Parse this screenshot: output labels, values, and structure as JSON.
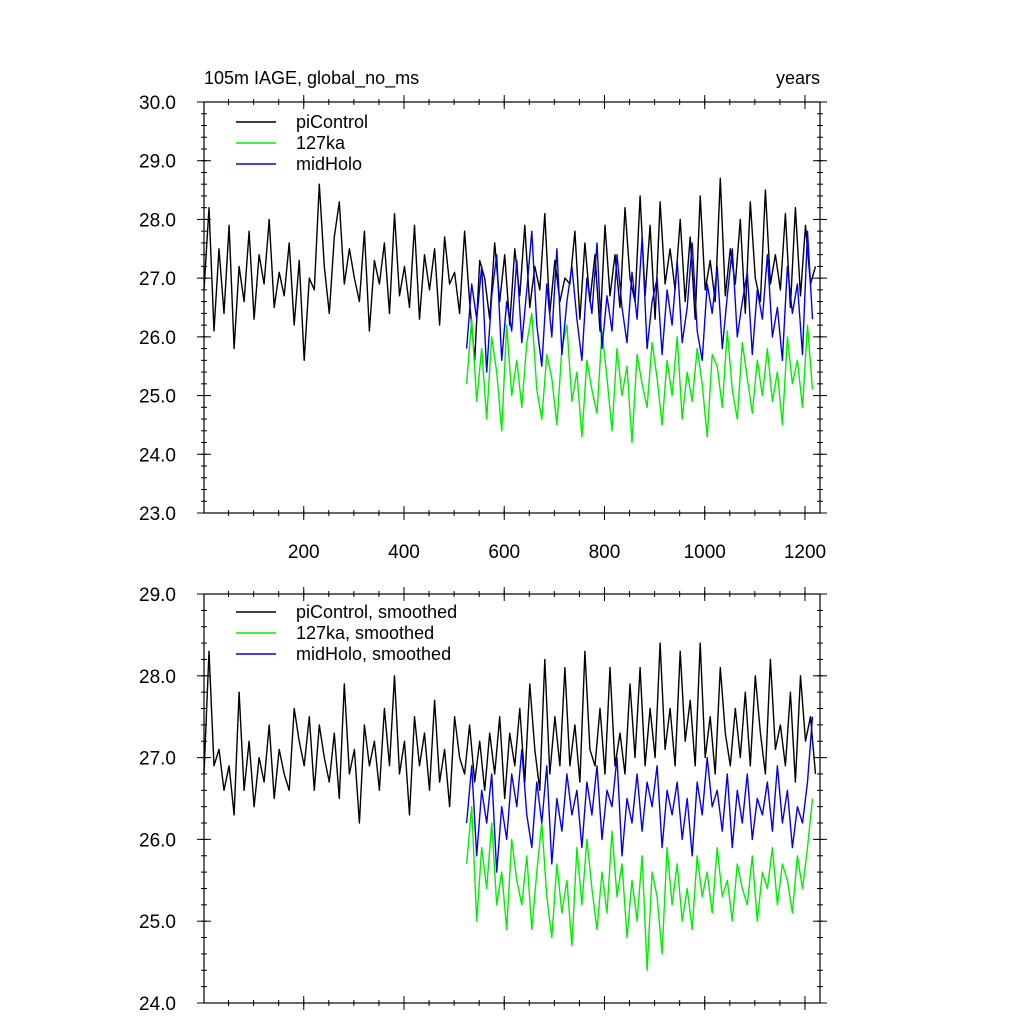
{
  "colors": {
    "piControl": "#000000",
    "127ka": "#00ee00",
    "midHolo": "#0000ee"
  },
  "chart_data": [
    {
      "type": "line",
      "title_left": "105m IAGE, global_no_ms",
      "title_right": "years",
      "x_range": [
        1,
        1230
      ],
      "ylim": [
        23.0,
        30.0
      ],
      "x_ticks": [
        200,
        400,
        600,
        800,
        1000,
        1200
      ],
      "x_tick_labels": [
        "200",
        "400",
        "600",
        "800",
        "1000",
        "1200"
      ],
      "y_ticks": [
        23,
        24,
        25,
        26,
        27,
        28,
        29,
        30
      ],
      "y_tick_labels": [
        "23.0",
        "24.0",
        "25.0",
        "26.0",
        "27.0",
        "28.0",
        "29.0",
        "30.0"
      ],
      "legend": [
        "piControl",
        "127ka",
        "midHolo"
      ],
      "series": [
        {
          "name": "piControl",
          "color": "#000000",
          "x_start": 1,
          "x_step": 10,
          "values": [
            26.8,
            28.2,
            26.1,
            27.5,
            26.4,
            27.9,
            25.8,
            27.2,
            26.6,
            27.8,
            26.3,
            27.4,
            26.9,
            28.0,
            26.5,
            27.1,
            26.7,
            27.6,
            26.2,
            27.3,
            25.6,
            27.0,
            26.8,
            28.6,
            27.2,
            26.4,
            27.7,
            28.3,
            26.9,
            27.5,
            27.0,
            26.6,
            27.8,
            26.1,
            27.3,
            26.9,
            27.6,
            26.4,
            28.1,
            26.7,
            27.2,
            26.5,
            27.9,
            26.3,
            27.4,
            26.8,
            27.5,
            26.2,
            27.7,
            26.9,
            27.1,
            26.4,
            27.8,
            26.6,
            25.6,
            27.3,
            27.0,
            26.3,
            27.6,
            26.6,
            27.4,
            26.2,
            27.5,
            26.7,
            27.9,
            26.5,
            27.2,
            26.8,
            28.1,
            26.4,
            27.3,
            26.6,
            27.0,
            26.9,
            27.8,
            26.3,
            27.6,
            26.6,
            27.4,
            26.1,
            27.9,
            26.7,
            27.4,
            26.5,
            28.2,
            27.0,
            26.6,
            28.4,
            26.7,
            27.9,
            26.3,
            28.3,
            26.9,
            27.5,
            26.8,
            28.0,
            26.6,
            27.7,
            26.3,
            28.4,
            26.8,
            27.3,
            26.6,
            28.7,
            26.7,
            27.5,
            26.9,
            28.0,
            26.4,
            28.3,
            27.0,
            26.6,
            28.5,
            26.9,
            27.4,
            26.8,
            28.1,
            26.5,
            28.2,
            26.7,
            27.9,
            26.9,
            27.2
          ]
        },
        {
          "name": "127ka",
          "color": "#00ee00",
          "x_start": 525,
          "x_step": 10,
          "values": [
            25.2,
            26.3,
            24.9,
            25.8,
            24.6,
            26.0,
            25.4,
            24.4,
            26.2,
            25.0,
            25.6,
            24.8,
            25.9,
            26.4,
            25.1,
            24.6,
            25.7,
            25.3,
            24.5,
            25.8,
            26.2,
            24.9,
            25.4,
            24.3,
            25.6,
            25.1,
            24.7,
            26.1,
            25.3,
            24.4,
            25.8,
            25.0,
            25.5,
            24.2,
            25.7,
            25.2,
            24.8,
            25.9,
            25.3,
            24.5,
            25.6,
            25.0,
            26.0,
            24.6,
            25.4,
            24.9,
            25.8,
            25.2,
            24.3,
            25.7,
            25.5,
            24.8,
            26.1,
            25.1,
            24.6,
            25.9,
            25.3,
            24.7,
            25.6,
            25.0,
            25.8,
            24.9,
            25.4,
            24.5,
            26.0,
            25.2,
            25.6,
            24.8,
            26.2,
            25.1
          ]
        },
        {
          "name": "midHolo",
          "color": "#0000ee",
          "x_start": 525,
          "x_step": 10,
          "values": [
            25.8,
            26.9,
            26.3,
            27.2,
            25.4,
            26.7,
            27.4,
            25.6,
            26.6,
            26.1,
            27.3,
            25.9,
            26.8,
            27.8,
            26.2,
            25.5,
            26.9,
            26.0,
            27.5,
            25.7,
            26.6,
            27.2,
            26.3,
            25.6,
            27.0,
            26.4,
            27.6,
            25.8,
            26.7,
            26.1,
            27.4,
            26.5,
            25.9,
            27.1,
            26.3,
            27.7,
            25.8,
            26.6,
            27.0,
            25.7,
            26.8,
            26.2,
            27.3,
            25.9,
            26.5,
            27.6,
            26.1,
            25.6,
            26.9,
            26.4,
            27.2,
            25.8,
            26.7,
            27.5,
            26.0,
            26.6,
            27.1,
            25.7,
            26.8,
            26.3,
            27.4,
            26.0,
            26.5,
            25.6,
            27.2,
            26.4,
            26.9,
            25.7,
            27.8,
            26.3
          ]
        }
      ]
    },
    {
      "type": "line",
      "x_range": [
        1,
        1230
      ],
      "ylim": [
        24.0,
        29.0
      ],
      "x_ticks": [
        200,
        400,
        600,
        800,
        1000,
        1200
      ],
      "y_ticks": [
        24,
        25,
        26,
        27,
        28,
        29
      ],
      "y_tick_labels": [
        "24.0",
        "25.0",
        "26.0",
        "27.0",
        "28.0",
        "29.0"
      ],
      "legend": [
        "piControl, smoothed",
        "127ka, smoothed",
        "midHolo, smoothed"
      ],
      "series": [
        {
          "name": "piControl, smoothed",
          "color": "#000000",
          "x_start": 1,
          "x_step": 10,
          "values": [
            26.8,
            28.3,
            26.9,
            27.1,
            26.6,
            26.9,
            26.3,
            27.8,
            26.6,
            27.2,
            26.4,
            27.0,
            26.7,
            27.4,
            26.5,
            27.1,
            26.8,
            26.6,
            27.6,
            27.2,
            26.9,
            27.5,
            26.6,
            27.4,
            27.0,
            26.7,
            27.3,
            26.5,
            27.9,
            26.8,
            27.1,
            26.2,
            27.4,
            26.9,
            27.2,
            26.6,
            27.6,
            26.9,
            28.0,
            26.8,
            27.2,
            26.3,
            27.5,
            26.9,
            27.3,
            26.6,
            27.7,
            26.7,
            27.1,
            26.4,
            27.5,
            27.0,
            26.8,
            27.4,
            26.7,
            27.2,
            26.6,
            27.3,
            26.8,
            27.5,
            26.5,
            27.3,
            26.9,
            27.6,
            26.7,
            27.9,
            27.1,
            26.6,
            28.2,
            26.8,
            27.5,
            26.9,
            28.1,
            26.9,
            27.4,
            26.7,
            28.3,
            27.1,
            26.9,
            27.6,
            26.8,
            28.1,
            26.9,
            27.3,
            26.8,
            27.9,
            27.0,
            28.1,
            26.9,
            27.6,
            27.0,
            28.4,
            27.1,
            27.6,
            26.9,
            28.3,
            27.2,
            27.7,
            26.9,
            28.4,
            27.0,
            27.5,
            26.8,
            28.1,
            27.3,
            26.9,
            27.6,
            27.0,
            27.8,
            26.9,
            28.0,
            27.3,
            26.8,
            28.2,
            27.1,
            27.4,
            26.9,
            27.8,
            26.7,
            28.0,
            27.2,
            27.5,
            26.8
          ]
        },
        {
          "name": "127ka, smoothed",
          "color": "#00ee00",
          "x_start": 525,
          "x_step": 10,
          "values": [
            25.7,
            26.4,
            25.0,
            25.9,
            25.4,
            26.2,
            25.2,
            25.6,
            24.9,
            26.0,
            25.5,
            25.2,
            25.8,
            24.9,
            25.6,
            26.2,
            25.3,
            24.8,
            25.7,
            25.1,
            25.5,
            24.7,
            25.9,
            25.2,
            26.0,
            25.4,
            24.9,
            25.6,
            25.1,
            26.1,
            25.3,
            25.7,
            24.8,
            25.5,
            25.0,
            25.8,
            24.4,
            25.6,
            25.3,
            24.6,
            25.9,
            25.2,
            25.7,
            25.0,
            25.4,
            24.9,
            25.8,
            25.3,
            25.6,
            25.1,
            25.9,
            25.3,
            25.5,
            25.0,
            25.7,
            25.4,
            25.2,
            25.8,
            25.0,
            25.6,
            25.4,
            25.9,
            25.2,
            25.7,
            25.5,
            25.1,
            25.8,
            25.4,
            25.9,
            26.5
          ]
        },
        {
          "name": "midHolo, smoothed",
          "color": "#0000ee",
          "x_start": 525,
          "x_step": 10,
          "values": [
            26.2,
            26.9,
            25.8,
            26.6,
            26.2,
            26.8,
            25.6,
            26.4,
            26.0,
            26.8,
            26.4,
            27.1,
            26.3,
            25.9,
            26.7,
            26.2,
            26.9,
            25.7,
            26.5,
            26.1,
            26.8,
            26.3,
            26.6,
            25.9,
            26.7,
            26.3,
            26.9,
            26.0,
            26.6,
            26.4,
            27.0,
            25.8,
            26.5,
            26.2,
            26.8,
            26.1,
            26.7,
            26.4,
            26.9,
            25.9,
            26.6,
            26.3,
            26.7,
            26.0,
            26.5,
            25.8,
            26.7,
            26.3,
            27.0,
            26.4,
            26.6,
            26.1,
            26.8,
            25.9,
            26.6,
            26.2,
            26.8,
            26.0,
            26.5,
            26.3,
            26.7,
            26.1,
            26.9,
            26.2,
            26.6,
            25.9,
            26.4,
            26.2,
            26.7,
            27.5
          ]
        }
      ]
    }
  ]
}
